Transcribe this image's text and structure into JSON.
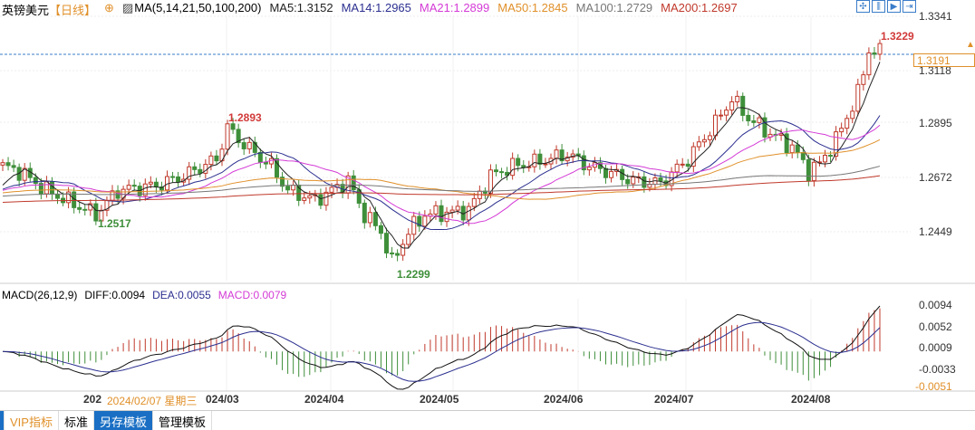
{
  "header": {
    "symbol": "英镑美元",
    "period": "【日线】",
    "ma_params": "MA(5,14,21,50,100,200)",
    "ma": [
      {
        "label": "MA5:1.3152",
        "color": "#222222"
      },
      {
        "label": "MA14:1.2965",
        "color": "#2b2f8f"
      },
      {
        "label": "MA21:1.2899",
        "color": "#d43bd6"
      },
      {
        "label": "MA50:1.2845",
        "color": "#e0902a"
      },
      {
        "label": "MA100:1.2729",
        "color": "#777777"
      },
      {
        "label": "MA200:1.2697",
        "color": "#c0392b"
      }
    ]
  },
  "macd_header": {
    "params": "MACD(26,12,9)",
    "diff": "DIFF:0.0094",
    "dea": "DEA:0.0055",
    "macd": "MACD:0.0079"
  },
  "price_axis": [
    "1.3341",
    "1.3118",
    "1.2895",
    "1.2672",
    "1.2449"
  ],
  "current_price": "1.3191",
  "macd_axis": [
    "0.0094",
    "0.0052",
    "0.0009",
    "-0.0033"
  ],
  "macd_cursor": "-0.0051",
  "x_axis": {
    "cursor": "2024/02/07 星期三",
    "labels": [
      "202",
      "024/03",
      "2024/04",
      "2024/05",
      "2024/06",
      "2024/07",
      "2024/08"
    ]
  },
  "annotations": {
    "high1": "1.2893",
    "low1": "1.2517",
    "low2": "1.2299",
    "high2": "1.3229"
  },
  "bottom_tabs": [
    "VIP指标",
    "标准",
    "另存模板",
    "管理模板"
  ],
  "colors": {
    "up": "#c0392b",
    "down": "#3f8f3a"
  },
  "chart_data": {
    "type": "candlestick",
    "title": "英镑美元 日线",
    "ylim": [
      1.23,
      1.3341
    ],
    "close_path": [
      [
        0,
        1.272
      ],
      [
        3,
        1.27
      ],
      [
        8,
        1.262
      ],
      [
        17,
        1.252
      ],
      [
        21,
        1.262
      ],
      [
        28,
        1.264
      ],
      [
        33,
        1.268
      ],
      [
        39,
        1.275
      ],
      [
        41,
        1.288
      ],
      [
        44,
        1.281
      ],
      [
        49,
        1.272
      ],
      [
        52,
        1.262
      ],
      [
        57,
        1.258
      ],
      [
        63,
        1.266
      ],
      [
        66,
        1.252
      ],
      [
        69,
        1.245
      ],
      [
        71,
        1.232
      ],
      [
        74,
        1.245
      ],
      [
        77,
        1.252
      ],
      [
        82,
        1.253
      ],
      [
        85,
        1.254
      ],
      [
        89,
        1.268
      ],
      [
        93,
        1.272
      ],
      [
        98,
        1.274
      ],
      [
        103,
        1.277
      ],
      [
        107,
        1.272
      ],
      [
        110,
        1.27
      ],
      [
        115,
        1.266
      ],
      [
        120,
        1.265
      ],
      [
        125,
        1.275
      ],
      [
        130,
        1.29
      ],
      [
        133,
        1.3
      ],
      [
        136,
        1.292
      ],
      [
        139,
        1.287
      ],
      [
        144,
        1.28
      ],
      [
        147,
        1.27
      ],
      [
        149,
        1.273
      ],
      [
        152,
        1.283
      ],
      [
        156,
        1.302
      ],
      [
        158,
        1.32
      ],
      [
        160,
        1.319
      ]
    ]
  }
}
